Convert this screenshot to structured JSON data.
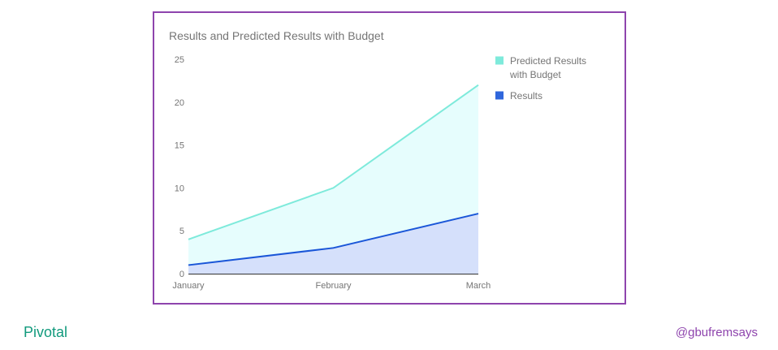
{
  "chart_data": {
    "type": "area",
    "title": "Results and Predicted Results with Budget",
    "categories": [
      "January",
      "February",
      "March"
    ],
    "series": [
      {
        "name": "Predicted Results with Budget",
        "values": [
          4,
          10,
          22
        ],
        "color": "#7eeadb",
        "fill": "#e6fdfd"
      },
      {
        "name": "Results",
        "values": [
          1,
          3,
          7
        ],
        "color": "#1a56d8",
        "fill": "#d5e0fb"
      }
    ],
    "yticks": [
      0,
      5,
      10,
      15,
      20,
      25
    ],
    "ylim": [
      0,
      25
    ],
    "legend_position": "right",
    "legend": [
      {
        "lines": [
          "Predicted Results",
          "with Budget"
        ],
        "color": "#7eeadb"
      },
      {
        "lines": [
          "Results"
        ],
        "color": "#2f66dc"
      }
    ]
  },
  "footer": {
    "brand": "Pivotal",
    "handle": "@gbufremsays"
  }
}
